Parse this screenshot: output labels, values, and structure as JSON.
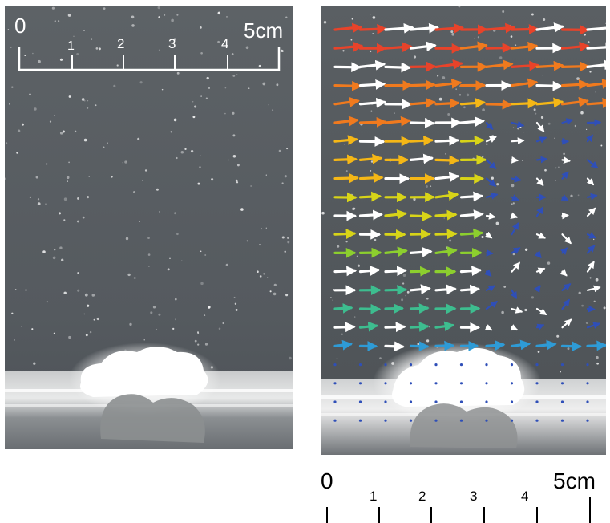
{
  "left_panel": {
    "scale": {
      "zero": "0",
      "ticks": [
        "1",
        "2",
        "3",
        "4"
      ],
      "end": "5cm",
      "color": "#ffffff"
    }
  },
  "right_panel": {
    "vector_colors": [
      "#e8432a",
      "#f07a1e",
      "#f5b716",
      "#d8d418",
      "#8ccf2e",
      "#3dbd8f",
      "#2e9bd6",
      "#2f4fb8",
      "#ffffff"
    ]
  },
  "bottom_scale": {
    "zero": "0",
    "ticks": [
      "1",
      "2",
      "3",
      "4"
    ],
    "end": "5cm",
    "color": "#000000"
  }
}
